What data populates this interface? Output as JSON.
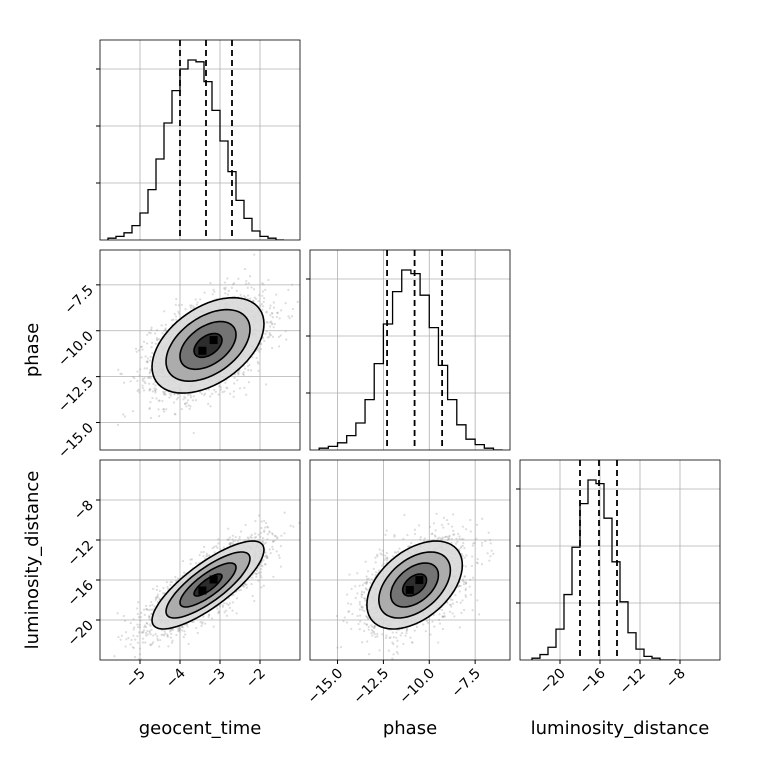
{
  "chart_data": {
    "type": "corner",
    "parameters": [
      "geocent_time",
      "phase",
      "luminosity_distance"
    ],
    "grid": true,
    "axes": {
      "geocent_time": {
        "range": [
          -6.0,
          -1.0
        ],
        "ticks": [
          -5,
          -4,
          -3,
          -2
        ],
        "tick_labels": [
          "−5",
          "−4",
          "−3",
          "−2"
        ]
      },
      "phase": {
        "range": [
          -16.5,
          -5.6
        ],
        "ticks": [
          -15.0,
          -12.5,
          -10.0,
          -7.5
        ],
        "tick_labels": [
          "−15.0",
          "−12.5",
          "−10.0",
          "−7.5"
        ]
      },
      "luminosity_distance": {
        "range": [
          -24.0,
          -4.0
        ],
        "ticks": [
          -20,
          -16,
          -12,
          -8
        ],
        "tick_labels": [
          "−20",
          "−16",
          "−12",
          "−8"
        ]
      }
    },
    "histograms": [
      {
        "parameter": "geocent_time",
        "bin_edges": [
          -5.8,
          -5.6,
          -5.4,
          -5.2,
          -5.0,
          -4.8,
          -4.6,
          -4.4,
          -4.2,
          -4.0,
          -3.8,
          -3.6,
          -3.4,
          -3.2,
          -3.0,
          -2.8,
          -2.6,
          -2.4,
          -2.2,
          -2.0,
          -1.8,
          -1.6,
          -1.4
        ],
        "counts": [
          0.01,
          0.02,
          0.04,
          0.08,
          0.15,
          0.28,
          0.45,
          0.65,
          0.83,
          0.95,
          1.0,
          0.99,
          0.88,
          0.72,
          0.55,
          0.38,
          0.22,
          0.12,
          0.05,
          0.02,
          0.01,
          0.0
        ],
        "quantiles": [
          -4.0,
          -3.35,
          -2.7
        ]
      },
      {
        "parameter": "phase",
        "bin_edges": [
          -16.0,
          -15.5,
          -15.0,
          -14.5,
          -14.0,
          -13.5,
          -13.0,
          -12.5,
          -12.0,
          -11.5,
          -11.0,
          -10.5,
          -10.0,
          -9.5,
          -9.0,
          -8.5,
          -8.0,
          -7.5,
          -7.0,
          -6.5,
          -6.0
        ],
        "counts": [
          0.01,
          0.02,
          0.04,
          0.08,
          0.15,
          0.28,
          0.48,
          0.7,
          0.88,
          1.0,
          0.98,
          0.86,
          0.68,
          0.47,
          0.28,
          0.14,
          0.06,
          0.03,
          0.01,
          0.0
        ],
        "quantiles": [
          -12.3,
          -10.8,
          -9.3
        ]
      },
      {
        "parameter": "luminosity_distance",
        "bin_edges": [
          -22.8,
          -22.0,
          -21.2,
          -20.4,
          -19.6,
          -18.8,
          -18.0,
          -17.2,
          -16.4,
          -15.6,
          -14.8,
          -14.0,
          -13.2,
          -12.4,
          -11.6,
          -10.8,
          -10.0,
          -9.2,
          -8.4
        ],
        "counts": [
          0.01,
          0.03,
          0.07,
          0.17,
          0.36,
          0.62,
          0.86,
          0.99,
          0.97,
          0.78,
          0.54,
          0.32,
          0.15,
          0.06,
          0.02,
          0.01,
          0.0,
          0.0
        ],
        "quantiles": [
          -18.0,
          -16.1,
          -14.3
        ]
      }
    ],
    "scatter_panels": [
      {
        "x": "geocent_time",
        "y": "phase",
        "mean": [
          -3.3,
          -10.8
        ],
        "sd": [
          0.7,
          1.3
        ],
        "correlation": 0.45
      },
      {
        "x": "geocent_time",
        "y": "luminosity_distance",
        "mean": [
          -3.3,
          -16.5
        ],
        "sd": [
          0.7,
          2.2
        ],
        "correlation": 0.8
      },
      {
        "x": "phase",
        "y": "luminosity_distance",
        "mean": [
          -10.8,
          -16.5
        ],
        "sd": [
          1.3,
          2.2
        ],
        "correlation": 0.45
      }
    ],
    "contour_levels_sigma": [
      0.5,
      1.0,
      1.5,
      2.0
    ]
  }
}
